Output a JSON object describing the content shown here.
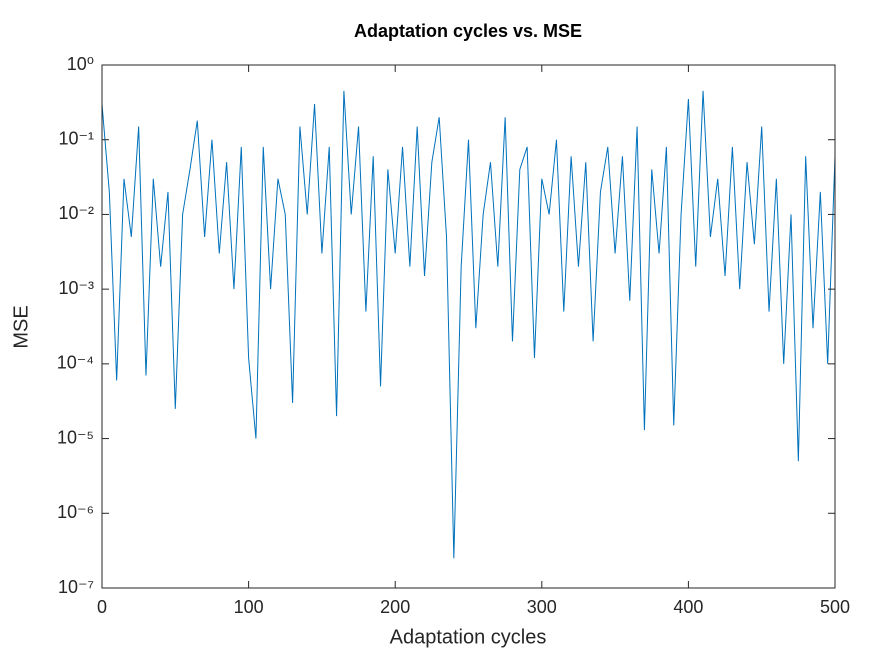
{
  "chart_data": {
    "type": "line",
    "title": "Adaptation cycles vs. MSE",
    "x_label": "Adaptation cycles",
    "y_label": "MSE",
    "log_y": true,
    "color": "#0072bd",
    "xlim": [
      0,
      500
    ],
    "xticks": [
      0,
      100,
      200,
      300,
      400,
      500
    ],
    "ylim": [
      1e-07,
      1
    ],
    "yticks": [
      {
        "value": 1e-07,
        "label": "10⁻⁷"
      },
      {
        "value": 1e-06,
        "label": "10⁻⁶"
      },
      {
        "value": 1e-05,
        "label": "10⁻⁵"
      },
      {
        "value": 0.0001,
        "label": "10⁻⁴"
      },
      {
        "value": 0.001,
        "label": "10⁻³"
      },
      {
        "value": 0.01,
        "label": "10⁻²"
      },
      {
        "value": 0.1,
        "label": "10⁻¹"
      },
      {
        "value": 1,
        "label": "10⁰"
      }
    ],
    "x": [
      0,
      5,
      10,
      15,
      20,
      25,
      30,
      35,
      40,
      45,
      50,
      55,
      60,
      65,
      70,
      75,
      80,
      85,
      90,
      95,
      100,
      105,
      110,
      115,
      120,
      125,
      130,
      135,
      140,
      145,
      150,
      155,
      160,
      165,
      170,
      175,
      180,
      185,
      190,
      195,
      200,
      205,
      210,
      215,
      220,
      225,
      230,
      235,
      240,
      245,
      250,
      255,
      260,
      265,
      270,
      275,
      280,
      285,
      290,
      295,
      300,
      305,
      310,
      315,
      320,
      325,
      330,
      335,
      340,
      345,
      350,
      355,
      360,
      365,
      370,
      375,
      380,
      385,
      390,
      395,
      400,
      405,
      410,
      415,
      420,
      425,
      430,
      435,
      440,
      445,
      450,
      455,
      460,
      465,
      470,
      475,
      480,
      485,
      490,
      495,
      500
    ],
    "values": [
      0.3,
      0.02,
      6e-05,
      0.03,
      0.005,
      0.15,
      7e-05,
      0.03,
      0.002,
      0.02,
      2.5e-05,
      0.01,
      0.04,
      0.18,
      0.005,
      0.1,
      0.003,
      0.05,
      0.001,
      0.08,
      0.00012,
      1e-05,
      0.08,
      0.001,
      0.03,
      0.01,
      3e-05,
      0.15,
      0.01,
      0.3,
      0.003,
      0.08,
      2e-05,
      0.45,
      0.01,
      0.15,
      0.0005,
      0.06,
      5e-05,
      0.04,
      0.003,
      0.08,
      0.002,
      0.15,
      0.0015,
      0.05,
      0.2,
      0.005,
      2.5e-07,
      0.002,
      0.1,
      0.0003,
      0.01,
      0.05,
      0.002,
      0.2,
      0.0002,
      0.04,
      0.08,
      0.00012,
      0.03,
      0.01,
      0.1,
      0.0005,
      0.06,
      0.002,
      0.05,
      0.0002,
      0.02,
      0.08,
      0.003,
      0.06,
      0.0007,
      0.15,
      1.3e-05,
      0.04,
      0.003,
      0.08,
      1.5e-05,
      0.01,
      0.35,
      0.002,
      0.45,
      0.005,
      0.03,
      0.0015,
      0.08,
      0.001,
      0.05,
      0.004,
      0.15,
      0.0005,
      0.03,
      0.0001,
      0.01,
      5e-06,
      0.06,
      0.0003,
      0.02,
      0.0001,
      0.06
    ]
  }
}
